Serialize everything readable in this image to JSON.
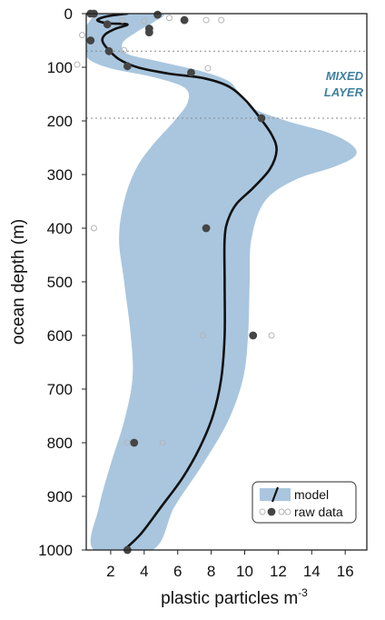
{
  "chart_data": {
    "type": "line",
    "xlabel": "plastic particles m",
    "xlabel_sup": "-3",
    "ylabel": "ocean depth (m)",
    "xlim": [
      0,
      18
    ],
    "ylim": [
      0,
      1000
    ],
    "y_inverted": true,
    "x_ticks": [
      2,
      4,
      6,
      8,
      10,
      12,
      14,
      16
    ],
    "y_ticks": [
      0,
      100,
      200,
      300,
      400,
      500,
      600,
      700,
      800,
      900,
      1000
    ],
    "reference_lines_y": [
      70,
      195
    ],
    "annotation": [
      "MIXED",
      "LAYER"
    ],
    "colors": {
      "band": "#a9c6de",
      "model": "#111111",
      "raw_fill": "#454545",
      "raw_open": "#b5b5b5",
      "annotation": "#3f7fa0"
    },
    "legend": {
      "position": "bottom-right",
      "entries": [
        "model",
        "raw data"
      ]
    },
    "series": [
      {
        "name": "model",
        "kind": "line",
        "points": [
          [
            3.0,
            0
          ],
          [
            1.8,
            5
          ],
          [
            1.2,
            12
          ],
          [
            1.8,
            18
          ],
          [
            3.0,
            20
          ],
          [
            2.3,
            28
          ],
          [
            1.7,
            38
          ],
          [
            1.5,
            50
          ],
          [
            1.8,
            65
          ],
          [
            2.5,
            85
          ],
          [
            3.6,
            100
          ],
          [
            5.5,
            112
          ],
          [
            7.5,
            120
          ],
          [
            9.0,
            135
          ],
          [
            10.0,
            160
          ],
          [
            10.8,
            190
          ],
          [
            11.6,
            225
          ],
          [
            11.9,
            255
          ],
          [
            11.5,
            290
          ],
          [
            10.5,
            325
          ],
          [
            9.5,
            355
          ],
          [
            9.0,
            385
          ],
          [
            8.8,
            420
          ],
          [
            8.8,
            500
          ],
          [
            8.8,
            600
          ],
          [
            8.6,
            680
          ],
          [
            8.1,
            750
          ],
          [
            7.3,
            810
          ],
          [
            6.3,
            865
          ],
          [
            5.0,
            920
          ],
          [
            3.8,
            970
          ],
          [
            2.8,
            1000
          ]
        ]
      },
      {
        "name": "model",
        "kind": "band",
        "upper": [
          [
            5.0,
            0
          ],
          [
            4.6,
            15
          ],
          [
            3.5,
            35
          ],
          [
            2.7,
            55
          ],
          [
            3.0,
            75
          ],
          [
            5.0,
            90
          ],
          [
            7.5,
            108
          ],
          [
            9.0,
            125
          ],
          [
            9.6,
            145
          ],
          [
            10.4,
            175
          ],
          [
            12.5,
            200
          ],
          [
            15.0,
            222
          ],
          [
            16.4,
            245
          ],
          [
            16.6,
            265
          ],
          [
            15.4,
            285
          ],
          [
            13.0,
            310
          ],
          [
            11.2,
            350
          ],
          [
            10.4,
            420
          ],
          [
            10.3,
            500
          ],
          [
            10.2,
            600
          ],
          [
            9.9,
            680
          ],
          [
            9.0,
            760
          ],
          [
            7.5,
            840
          ],
          [
            5.8,
            920
          ],
          [
            4.5,
            1000
          ]
        ],
        "lower": [
          [
            1.0,
            1000
          ],
          [
            1.3,
            920
          ],
          [
            2.0,
            840
          ],
          [
            2.8,
            760
          ],
          [
            3.3,
            680
          ],
          [
            3.2,
            600
          ],
          [
            2.8,
            500
          ],
          [
            2.5,
            420
          ],
          [
            2.8,
            350
          ],
          [
            3.5,
            290
          ],
          [
            4.5,
            245
          ],
          [
            5.8,
            200
          ],
          [
            6.6,
            165
          ],
          [
            6.4,
            138
          ],
          [
            4.5,
            118
          ],
          [
            2.0,
            102
          ],
          [
            0.7,
            85
          ],
          [
            0.2,
            60
          ],
          [
            0.2,
            40
          ],
          [
            0.6,
            20
          ],
          [
            1.5,
            0
          ]
        ]
      },
      {
        "name": "raw data",
        "kind": "scatter",
        "filled": [
          [
            0.8,
            0
          ],
          [
            1.0,
            0
          ],
          [
            4.8,
            2
          ],
          [
            6.4,
            12
          ],
          [
            1.8,
            20
          ],
          [
            4.3,
            28
          ],
          [
            4.3,
            35
          ],
          [
            0.8,
            50
          ],
          [
            1.9,
            70
          ],
          [
            3.0,
            98
          ],
          [
            6.8,
            110
          ],
          [
            11.0,
            195
          ],
          [
            7.7,
            400
          ],
          [
            10.5,
            600
          ],
          [
            3.4,
            800
          ],
          [
            3.0,
            1000
          ]
        ],
        "open": [
          [
            2.7,
            12
          ],
          [
            4.0,
            14
          ],
          [
            5.5,
            8
          ],
          [
            7.7,
            12
          ],
          [
            8.6,
            12
          ],
          [
            0.3,
            40
          ],
          [
            2.8,
            68
          ],
          [
            0.0,
            95
          ],
          [
            7.8,
            102
          ],
          [
            1.0,
            400
          ],
          [
            7.5,
            600
          ],
          [
            11.6,
            600
          ],
          [
            3.0,
            800
          ],
          [
            5.1,
            800
          ]
        ]
      }
    ]
  }
}
